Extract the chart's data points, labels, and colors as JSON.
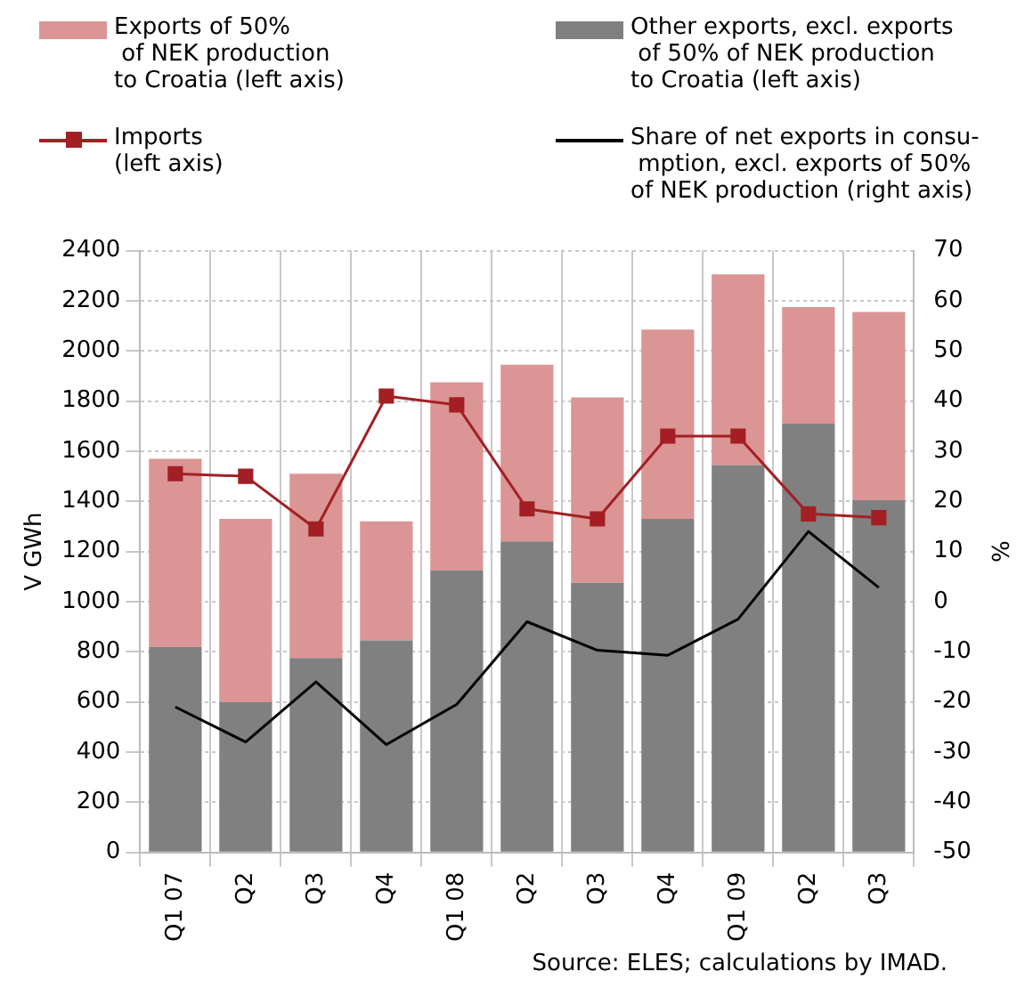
{
  "chart_data": {
    "type": "bar",
    "stacked": true,
    "categories": [
      "Q1 07",
      "Q2",
      "Q3",
      "Q4",
      "Q1 08",
      "Q2",
      "Q3",
      "Q4",
      "Q1 09",
      "Q2",
      "Q3"
    ],
    "ylabel": "V GWh",
    "y2label": "%",
    "ylim": [
      0,
      2400
    ],
    "yticks": [
      0,
      200,
      400,
      600,
      800,
      1000,
      1200,
      1400,
      1600,
      1800,
      2000,
      2200,
      2400
    ],
    "y2lim": [
      -50,
      70
    ],
    "y2ticks": [
      -50,
      -40,
      -30,
      -20,
      -10,
      0,
      10,
      20,
      30,
      40,
      50,
      60,
      70
    ],
    "grid": true,
    "legend": "top",
    "annotations": [
      "Source: ELES; calculations by IMAD."
    ],
    "series": [
      {
        "name": "Other exports, excl. exports\n of 50% of NEK production\nto Croatia (left axis)",
        "color": "#808080",
        "values": [
          820,
          600,
          775,
          845,
          1125,
          1240,
          1075,
          1330,
          1545,
          1710,
          1405
        ]
      },
      {
        "name": "Exports of 50%\n of NEK production\nto Croatia (left axis)",
        "color": "#da9594",
        "values": [
          750,
          730,
          735,
          475,
          750,
          705,
          740,
          755,
          760,
          465,
          750
        ]
      },
      {
        "type": "line",
        "name": "Imports\n(left axis)",
        "color": "#a31f24",
        "marker": "square",
        "values": [
          1510,
          1500,
          1290,
          1820,
          1785,
          1370,
          1330,
          1660,
          1660,
          1350,
          1335
        ]
      },
      {
        "type": "line",
        "name": "Share of net exports in consu-\n mption, excl. exports of 50%\nof NEK production (right axis)",
        "color": "#000000",
        "marker": "none",
        "axis": "y2",
        "values": [
          -21,
          -28,
          -16,
          -28.5,
          -20.5,
          -4,
          -9.7,
          -10.7,
          -3.5,
          14,
          2.8
        ]
      }
    ]
  }
}
